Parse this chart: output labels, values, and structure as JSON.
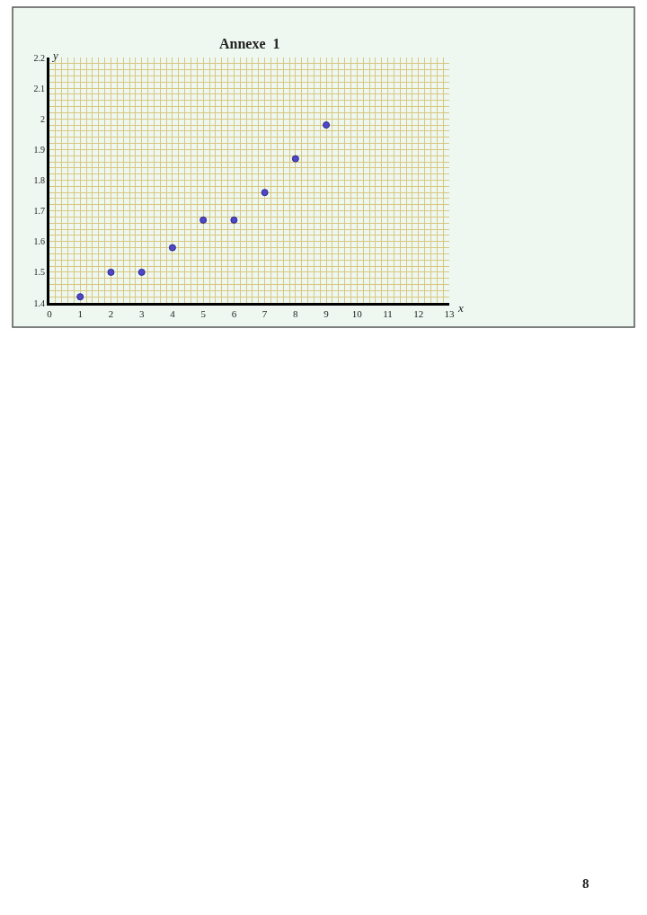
{
  "chart_data": {
    "type": "scatter",
    "title": "Annexe  1",
    "xlabel": "x",
    "ylabel": "y",
    "x": [
      1,
      2,
      3,
      4,
      5,
      6,
      7,
      8,
      9
    ],
    "values": [
      1.42,
      1.5,
      1.5,
      1.58,
      1.67,
      1.67,
      1.76,
      1.87,
      1.98
    ],
    "color": "#4f46c8",
    "marker": "circle",
    "xlim": [
      0,
      13
    ],
    "xticks": [
      0,
      {
        "value": 0.2,
        "label": null
      },
      {
        "value": 0.4,
        "label": null
      },
      {
        "value": 0.6,
        "label": null
      },
      {
        "value": 0.8,
        "label": null
      },
      1,
      {
        "value": 1.2,
        "label": null
      },
      {
        "value": 1.4,
        "label": null
      },
      {
        "value": 1.6,
        "label": null
      },
      {
        "value": 1.8,
        "label": null
      },
      2,
      {
        "value": 2.2,
        "label": null
      },
      {
        "value": 2.4,
        "label": null
      },
      {
        "value": 2.6,
        "label": null
      },
      {
        "value": 2.8,
        "label": null
      },
      3,
      {
        "value": 3.2,
        "label": null
      },
      {
        "value": 3.4,
        "label": null
      },
      {
        "value": 3.6,
        "label": null
      },
      {
        "value": 3.8,
        "label": null
      },
      4,
      {
        "value": 4.2,
        "label": null
      },
      {
        "value": 4.4,
        "label": null
      },
      {
        "value": 4.6,
        "label": null
      },
      {
        "value": 4.8,
        "label": null
      },
      5,
      {
        "value": 5.2,
        "label": null
      },
      {
        "value": 5.4,
        "label": null
      },
      {
        "value": 5.6,
        "label": null
      },
      {
        "value": 5.8,
        "label": null
      },
      6,
      {
        "value": 6.2,
        "label": null
      },
      {
        "value": 6.4,
        "label": null
      },
      {
        "value": 6.6,
        "label": null
      },
      {
        "value": 6.8,
        "label": null
      },
      7,
      {
        "value": 7.2,
        "label": null
      },
      {
        "value": 7.4,
        "label": null
      },
      {
        "value": 7.6,
        "label": null
      },
      {
        "value": 7.8,
        "label": null
      },
      8,
      {
        "value": 8.2,
        "label": null
      },
      {
        "value": 8.4,
        "label": null
      },
      {
        "value": 8.6,
        "label": null
      },
      {
        "value": 8.8,
        "label": null
      },
      9,
      {
        "value": 9.2,
        "label": null
      },
      {
        "value": 9.4,
        "label": null
      },
      {
        "value": 9.6,
        "label": null
      },
      {
        "value": 9.8,
        "label": null
      },
      10,
      {
        "value": 10.2,
        "label": null
      },
      {
        "value": 10.4,
        "label": null
      },
      {
        "value": 10.6,
        "label": null
      },
      {
        "value": 10.8,
        "label": null
      },
      11,
      {
        "value": 11.2,
        "label": null
      },
      {
        "value": 11.4,
        "label": null
      },
      {
        "value": 11.6,
        "label": null
      },
      {
        "value": 11.8,
        "label": null
      },
      12,
      {
        "value": 12.2,
        "label": null
      },
      {
        "value": 12.4,
        "label": null
      },
      {
        "value": 12.6,
        "label": null
      },
      {
        "value": 12.8,
        "label": null
      },
      13
    ],
    "ylim": [
      1.4,
      2.2
    ],
    "yticks": [
      1.4,
      {
        "value": 1.42,
        "label": null
      },
      {
        "value": 1.44,
        "label": null
      },
      {
        "value": 1.46,
        "label": null
      },
      {
        "value": 1.48,
        "label": null
      },
      1.5,
      {
        "value": 1.52,
        "label": null
      },
      {
        "value": 1.54,
        "label": null
      },
      {
        "value": 1.56,
        "label": null
      },
      {
        "value": 1.58,
        "label": null
      },
      1.6,
      {
        "value": 1.62,
        "label": null
      },
      {
        "value": 1.64,
        "label": null
      },
      {
        "value": 1.66,
        "label": null
      },
      {
        "value": 1.68,
        "label": null
      },
      1.7,
      {
        "value": 1.72,
        "label": null
      },
      {
        "value": 1.74,
        "label": null
      },
      {
        "value": 1.76,
        "label": null
      },
      {
        "value": 1.78,
        "label": null
      },
      1.8,
      {
        "value": 1.82,
        "label": null
      },
      {
        "value": 1.84,
        "label": null
      },
      {
        "value": 1.86,
        "label": null
      },
      {
        "value": 1.88,
        "label": null
      },
      1.9,
      {
        "value": 1.92,
        "label": null
      },
      {
        "value": 1.94,
        "label": null
      },
      {
        "value": 1.96,
        "label": null
      },
      {
        "value": 1.98,
        "label": null
      },
      2,
      {
        "value": 2.02,
        "label": null
      },
      {
        "value": 2.04,
        "label": null
      },
      {
        "value": 2.06,
        "label": null
      },
      {
        "value": 2.08,
        "label": null
      },
      2.1,
      {
        "value": 2.12,
        "label": null
      },
      {
        "value": 2.14,
        "label": null
      },
      {
        "value": 2.16,
        "label": null
      },
      {
        "value": 2.18,
        "label": null
      },
      2.2
    ],
    "grid": true,
    "legend": false,
    "annotations": [
      "8"
    ]
  }
}
